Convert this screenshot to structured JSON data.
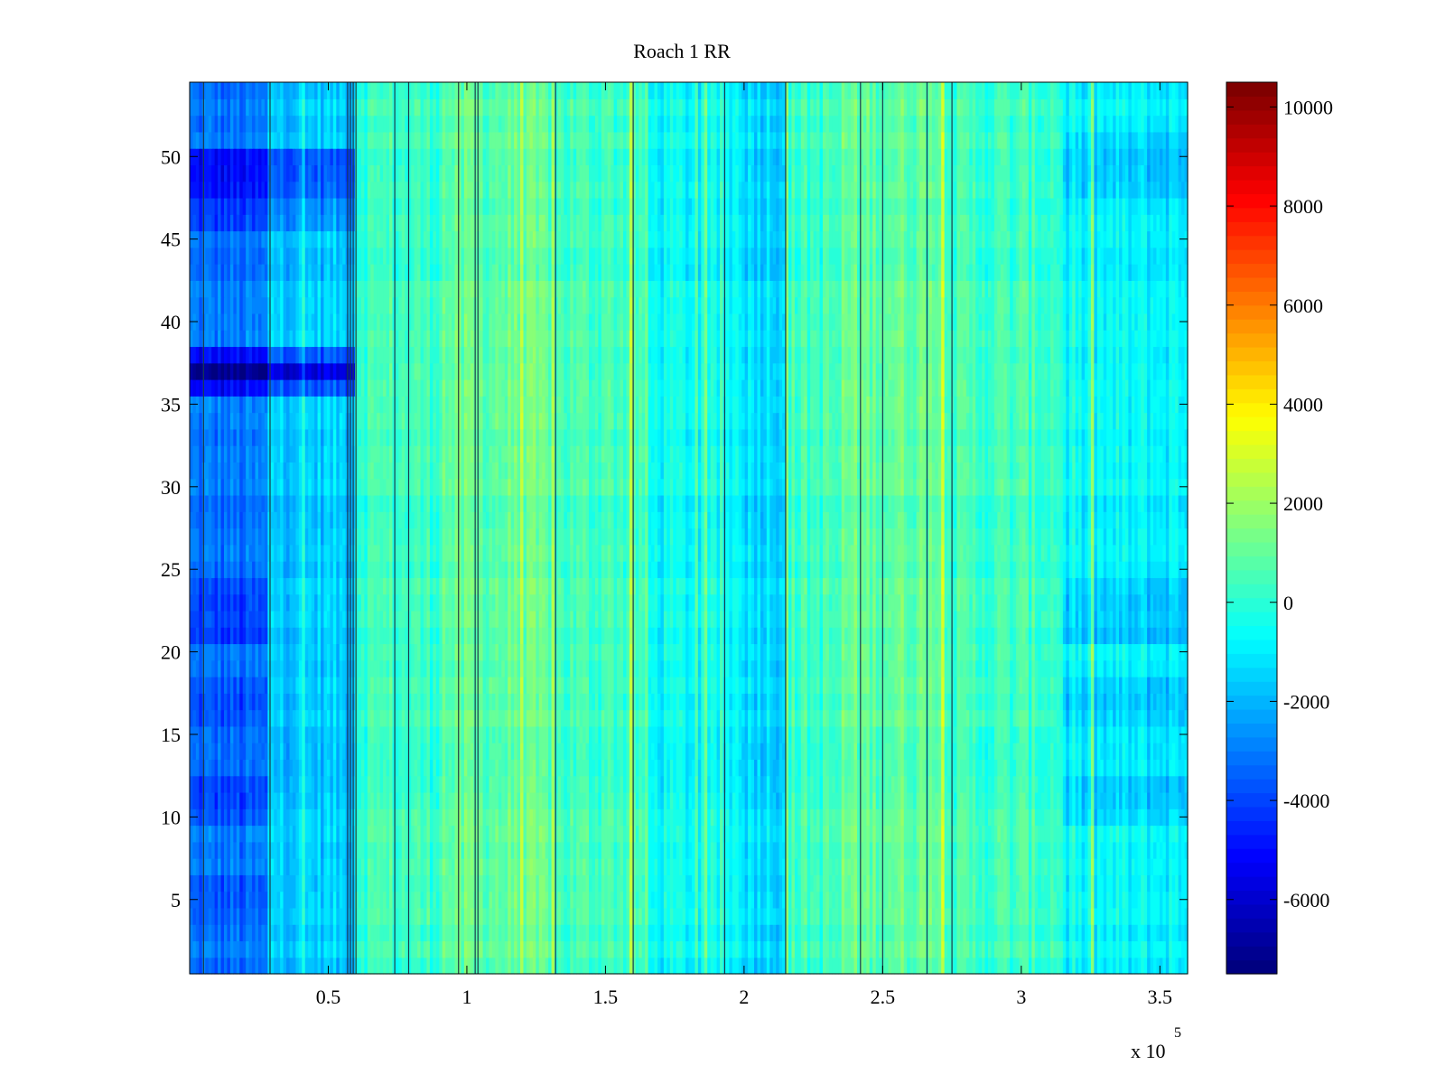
{
  "chart_data": {
    "type": "heatmap",
    "title": "Roach 1 RR",
    "xlabel": "",
    "ylabel": "",
    "x_exponent_label": "x 10",
    "x_exponent_power": "5",
    "x_range": [
      0.5,
      360000.5
    ],
    "y_range": [
      0.5,
      54.5
    ],
    "x_ticks": [
      {
        "value": 50000,
        "label": "0.5"
      },
      {
        "value": 100000,
        "label": "1"
      },
      {
        "value": 150000,
        "label": "1.5"
      },
      {
        "value": 200000,
        "label": "2"
      },
      {
        "value": 250000,
        "label": "2.5"
      },
      {
        "value": 300000,
        "label": "3"
      },
      {
        "value": 350000,
        "label": "3.5"
      }
    ],
    "y_ticks": [
      {
        "value": 5,
        "label": "5"
      },
      {
        "value": 10,
        "label": "10"
      },
      {
        "value": 15,
        "label": "15"
      },
      {
        "value": 20,
        "label": "20"
      },
      {
        "value": 25,
        "label": "25"
      },
      {
        "value": 30,
        "label": "30"
      },
      {
        "value": 35,
        "label": "35"
      },
      {
        "value": 40,
        "label": "40"
      },
      {
        "value": 45,
        "label": "45"
      },
      {
        "value": 50,
        "label": "50"
      }
    ],
    "colorbar": {
      "colormap": "jet",
      "range": [
        -7500,
        10500
      ],
      "ticks": [
        {
          "value": 10000,
          "label": "10000"
        },
        {
          "value": 8000,
          "label": "8000"
        },
        {
          "value": 6000,
          "label": "6000"
        },
        {
          "value": 4000,
          "label": "4000"
        },
        {
          "value": 2000,
          "label": "2000"
        },
        {
          "value": 0,
          "label": "0"
        },
        {
          "value": -2000,
          "label": "-2000"
        },
        {
          "value": -4000,
          "label": "-4000"
        },
        {
          "value": -6000,
          "label": "-6000"
        }
      ]
    },
    "column_segments": [
      {
        "x": [
          0,
          28000
        ],
        "base": -3200
      },
      {
        "x": [
          28000,
          60000
        ],
        "base": -1600
      },
      {
        "x": [
          60000,
          90000
        ],
        "base": 300
      },
      {
        "x": [
          90000,
          130000
        ],
        "base": 900
      },
      {
        "x": [
          130000,
          165000
        ],
        "base": 400
      },
      {
        "x": [
          165000,
          200000
        ],
        "base": -700
      },
      {
        "x": [
          200000,
          215000
        ],
        "base": -1200
      },
      {
        "x": [
          215000,
          235000
        ],
        "base": 300
      },
      {
        "x": [
          235000,
          275000
        ],
        "base": 1000
      },
      {
        "x": [
          275000,
          315000
        ],
        "base": 300
      },
      {
        "x": [
          315000,
          360000
        ],
        "base": -900
      }
    ],
    "row_effects": [
      {
        "y": [
          36,
          37
        ],
        "delta": -2200,
        "x_max": 60000
      },
      {
        "y": [
          37,
          38
        ],
        "delta": -2000,
        "x_max": 60000
      },
      {
        "y": [
          48,
          50
        ],
        "delta": -1800,
        "x_max": 60000
      },
      {
        "y": [
          46,
          47
        ],
        "delta": -900,
        "x_max": 60000
      },
      {
        "y": [
          21,
          24
        ],
        "delta": -1000,
        "x_max": 28000
      },
      {
        "y": [
          16,
          18
        ],
        "delta": -700,
        "x_max": 28000
      },
      {
        "y": [
          10,
          12
        ],
        "delta": -800,
        "x_max": 28000
      },
      {
        "y": [
          4,
          6
        ],
        "delta": -600,
        "x_max": 28000
      },
      {
        "y": [
          21,
          24
        ],
        "delta": -900,
        "x_min": 315000
      },
      {
        "y": [
          16,
          18
        ],
        "delta": -800,
        "x_min": 315000
      },
      {
        "y": [
          10,
          12
        ],
        "delta": -700,
        "x_min": 315000
      },
      {
        "y": [
          48,
          51
        ],
        "delta": -700,
        "x_min": 315000
      }
    ],
    "dark_lines_x": [
      5000,
      29000,
      57000,
      58000,
      59000,
      60000,
      74000,
      79000,
      97000,
      103000,
      104000,
      132000,
      160000,
      193000,
      215000,
      242000,
      250000,
      266000,
      275000
    ]
  }
}
